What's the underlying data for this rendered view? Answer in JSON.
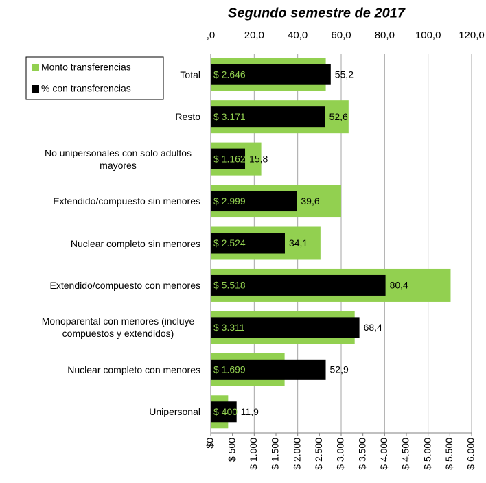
{
  "chart_data": {
    "type": "bar",
    "orientation": "horizontal",
    "title": "Segundo semestre de 2017",
    "categories": [
      "Total",
      "Resto",
      "No unipersonales con solo adultos mayores",
      "Extendido/compuesto sin menores",
      "Nuclear completo sin menores",
      "Extendido/compuesto con menores",
      "Monoparental con menores (incluye compuestos y extendidos)",
      "Nuclear completo con menores",
      "Unipersonal"
    ],
    "series": [
      {
        "name": "Monto transferencias",
        "color": "#92d050",
        "axis": "x",
        "values": [
          2646,
          3171,
          1162,
          2999,
          2524,
          5518,
          3311,
          1699,
          400
        ],
        "value_labels": [
          "$ 2.646",
          "$ 3.171",
          "$ 1.162",
          "$ 2.999",
          "$ 2.524",
          "$ 5.518",
          "$ 3.311",
          "$ 1.699",
          "$ 400"
        ]
      },
      {
        "name": "% con transferencias",
        "color": "#000000",
        "axis": "x2",
        "values": [
          55.2,
          52.6,
          15.8,
          39.6,
          34.1,
          80.4,
          68.4,
          52.9,
          11.9
        ],
        "value_labels": [
          "55,2",
          "52,6",
          "15,8",
          "39,6",
          "34,1",
          "80,4",
          "68,4",
          "52,9",
          "11,9"
        ]
      }
    ],
    "xlim": [
      0,
      6000
    ],
    "xticks": [
      {
        "value": 0,
        "label": "$0"
      },
      {
        "value": 500,
        "label": "$ 500"
      },
      {
        "value": 1000,
        "label": "$ 1.000"
      },
      {
        "value": 1500,
        "label": "$ 1.500"
      },
      {
        "value": 2000,
        "label": "$ 2.000"
      },
      {
        "value": 2500,
        "label": "$ 2.500"
      },
      {
        "value": 3000,
        "label": "$ 3.000"
      },
      {
        "value": 3500,
        "label": "$ 3.500"
      },
      {
        "value": 4000,
        "label": "$ 4.000"
      },
      {
        "value": 4500,
        "label": "$ 4.500"
      },
      {
        "value": 5000,
        "label": "$ 5.000"
      },
      {
        "value": 5500,
        "label": "$ 5.500"
      },
      {
        "value": 6000,
        "label": "$ 6.000"
      }
    ],
    "x2lim": [
      0,
      120
    ],
    "x2ticks": [
      {
        "value": 0,
        "label": ",0"
      },
      {
        "value": 20,
        "label": "20,0"
      },
      {
        "value": 40,
        "label": "40,0"
      },
      {
        "value": 60,
        "label": "60,0"
      },
      {
        "value": 80,
        "label": "80,0"
      },
      {
        "value": 100,
        "label": "100,0"
      },
      {
        "value": 120,
        "label": "120,0"
      }
    ],
    "grid": true,
    "legend": "upper left"
  }
}
